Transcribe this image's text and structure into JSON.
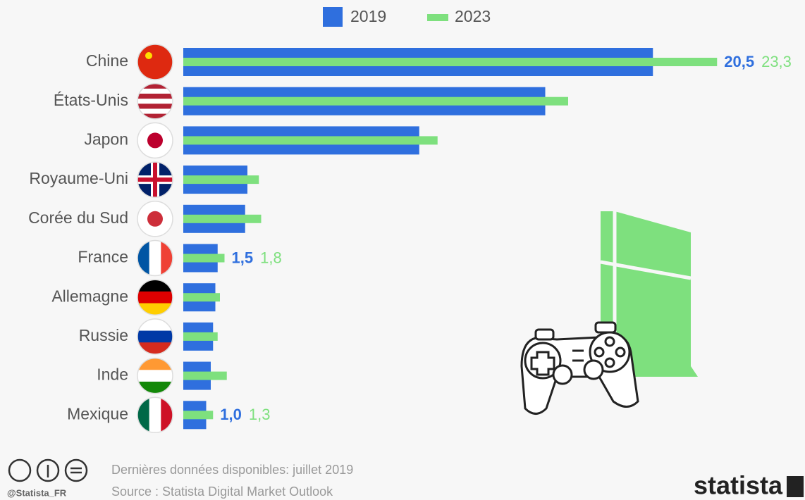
{
  "chart_data": {
    "type": "barh",
    "categories": [
      "Chine",
      "États-Unis",
      "Japon",
      "Royaume-Uni",
      "Corée du Sud",
      "France",
      "Allemagne",
      "Russie",
      "Inde",
      "Mexique"
    ],
    "series": [
      {
        "name": "2019",
        "color": "#2f6fde",
        "values": [
          20.5,
          15.8,
          10.3,
          2.8,
          2.7,
          1.5,
          1.4,
          1.3,
          1.2,
          1.0
        ],
        "value_labels": [
          "20,5",
          null,
          null,
          null,
          null,
          "1,5",
          null,
          null,
          null,
          "1,0"
        ]
      },
      {
        "name": "2023",
        "color": "#7ee07e",
        "values": [
          23.3,
          16.8,
          11.1,
          3.3,
          3.4,
          1.8,
          1.6,
          1.5,
          1.9,
          1.3
        ],
        "value_labels": [
          "23,3",
          null,
          null,
          null,
          null,
          "1,8",
          null,
          null,
          null,
          "1,3"
        ]
      }
    ],
    "xlim": [
      0,
      24
    ],
    "legend": "top",
    "notes": [
      "Dernières données disponibles: juillet 2019",
      "Source : Statista Digital Market Outlook"
    ],
    "handle": "@Statista_FR",
    "brand": "statista"
  }
}
